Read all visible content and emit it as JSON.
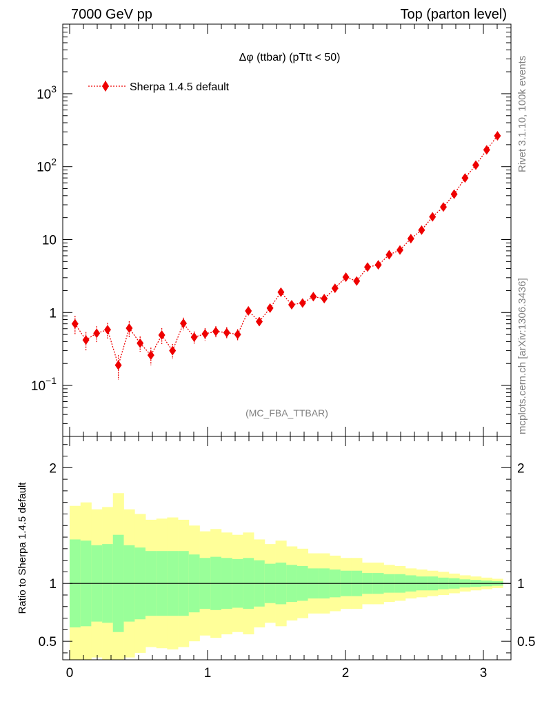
{
  "header": {
    "left": "7000 GeV pp",
    "right": "Top (parton level)"
  },
  "side": {
    "rivet": "Rivet 3.1.10,  100k events",
    "mcplots": "mcplots.cern.ch [arXiv:1306.3436]"
  },
  "colors": {
    "series": "#ee0000",
    "band_inner": "#99ff99",
    "band_outer": "#ffff99"
  },
  "chart_data": [
    {
      "type": "line",
      "title": "Δφ (ttbar) (pTtt < 50)",
      "analysis": "(MC_FBA_TTBAR)",
      "xlabel": "",
      "ylabel": "",
      "xlim": [
        -0.05,
        3.2
      ],
      "ylim": [
        0.02,
        9000
      ],
      "yscale": "log",
      "ytick_labels": [
        "10^-1",
        "1",
        "10",
        "10^2",
        "10^3"
      ],
      "legend": {
        "placement": "top-left",
        "entries": [
          "Sherpa 1.4.5 default"
        ]
      },
      "x": [
        0.039,
        0.118,
        0.196,
        0.275,
        0.353,
        0.432,
        0.511,
        0.589,
        0.668,
        0.746,
        0.825,
        0.903,
        0.982,
        1.06,
        1.139,
        1.218,
        1.296,
        1.375,
        1.453,
        1.532,
        1.61,
        1.689,
        1.767,
        1.846,
        1.924,
        2.003,
        2.081,
        2.16,
        2.238,
        2.317,
        2.395,
        2.474,
        2.552,
        2.631,
        2.71,
        2.788,
        2.867,
        2.945,
        3.024,
        3.102
      ],
      "series": [
        {
          "name": "Sherpa 1.4.5 default",
          "values": [
            0.7,
            0.42,
            0.52,
            0.58,
            0.19,
            0.61,
            0.38,
            0.26,
            0.49,
            0.3,
            0.71,
            0.46,
            0.51,
            0.55,
            0.53,
            0.5,
            1.05,
            0.75,
            1.15,
            1.9,
            1.28,
            1.35,
            1.65,
            1.55,
            2.15,
            3.05,
            2.7,
            4.2,
            4.5,
            6.2,
            7.2,
            10.3,
            13.5,
            20.5,
            28.0,
            42.0,
            70.0,
            105.0,
            170.0,
            265.0
          ],
          "errors": [
            0.2,
            0.12,
            0.13,
            0.14,
            0.07,
            0.15,
            0.09,
            0.07,
            0.12,
            0.07,
            0.14,
            0.09,
            0.1,
            0.1,
            0.1,
            0.09,
            0.16,
            0.11,
            0.15,
            0.24,
            0.16,
            0.16,
            0.18,
            0.17,
            0.22,
            0.28,
            0.25,
            0.33,
            0.35,
            0.45,
            0.5,
            0.6,
            0.7,
            0.9,
            1.1,
            1.4,
            2.0,
            2.5,
            3.5,
            4.5
          ]
        }
      ]
    },
    {
      "type": "area",
      "ylabel": "Ratio to Sherpa 1.4.5 default",
      "xlim": [
        -0.05,
        3.2
      ],
      "ylim": [
        0.34,
        2.27
      ],
      "x_tick_labels": [
        "0",
        "1",
        "2",
        "3"
      ],
      "y_tick_labels": [
        "0.5",
        "1",
        "2"
      ],
      "bin_width": 0.0785,
      "reference_line": 1,
      "inner_band_half_width": [
        0.38,
        0.37,
        0.33,
        0.34,
        0.42,
        0.33,
        0.31,
        0.28,
        0.28,
        0.28,
        0.28,
        0.25,
        0.22,
        0.23,
        0.22,
        0.21,
        0.22,
        0.2,
        0.17,
        0.18,
        0.16,
        0.15,
        0.13,
        0.13,
        0.12,
        0.11,
        0.11,
        0.09,
        0.09,
        0.08,
        0.08,
        0.07,
        0.06,
        0.06,
        0.05,
        0.045,
        0.035,
        0.03,
        0.025,
        0.02
      ],
      "outer_band_half_width": [
        0.67,
        0.7,
        0.64,
        0.66,
        0.78,
        0.64,
        0.6,
        0.55,
        0.56,
        0.57,
        0.55,
        0.5,
        0.45,
        0.47,
        0.44,
        0.42,
        0.44,
        0.38,
        0.34,
        0.37,
        0.32,
        0.3,
        0.26,
        0.26,
        0.24,
        0.22,
        0.22,
        0.18,
        0.18,
        0.16,
        0.15,
        0.13,
        0.12,
        0.11,
        0.1,
        0.085,
        0.07,
        0.06,
        0.05,
        0.04
      ]
    }
  ]
}
